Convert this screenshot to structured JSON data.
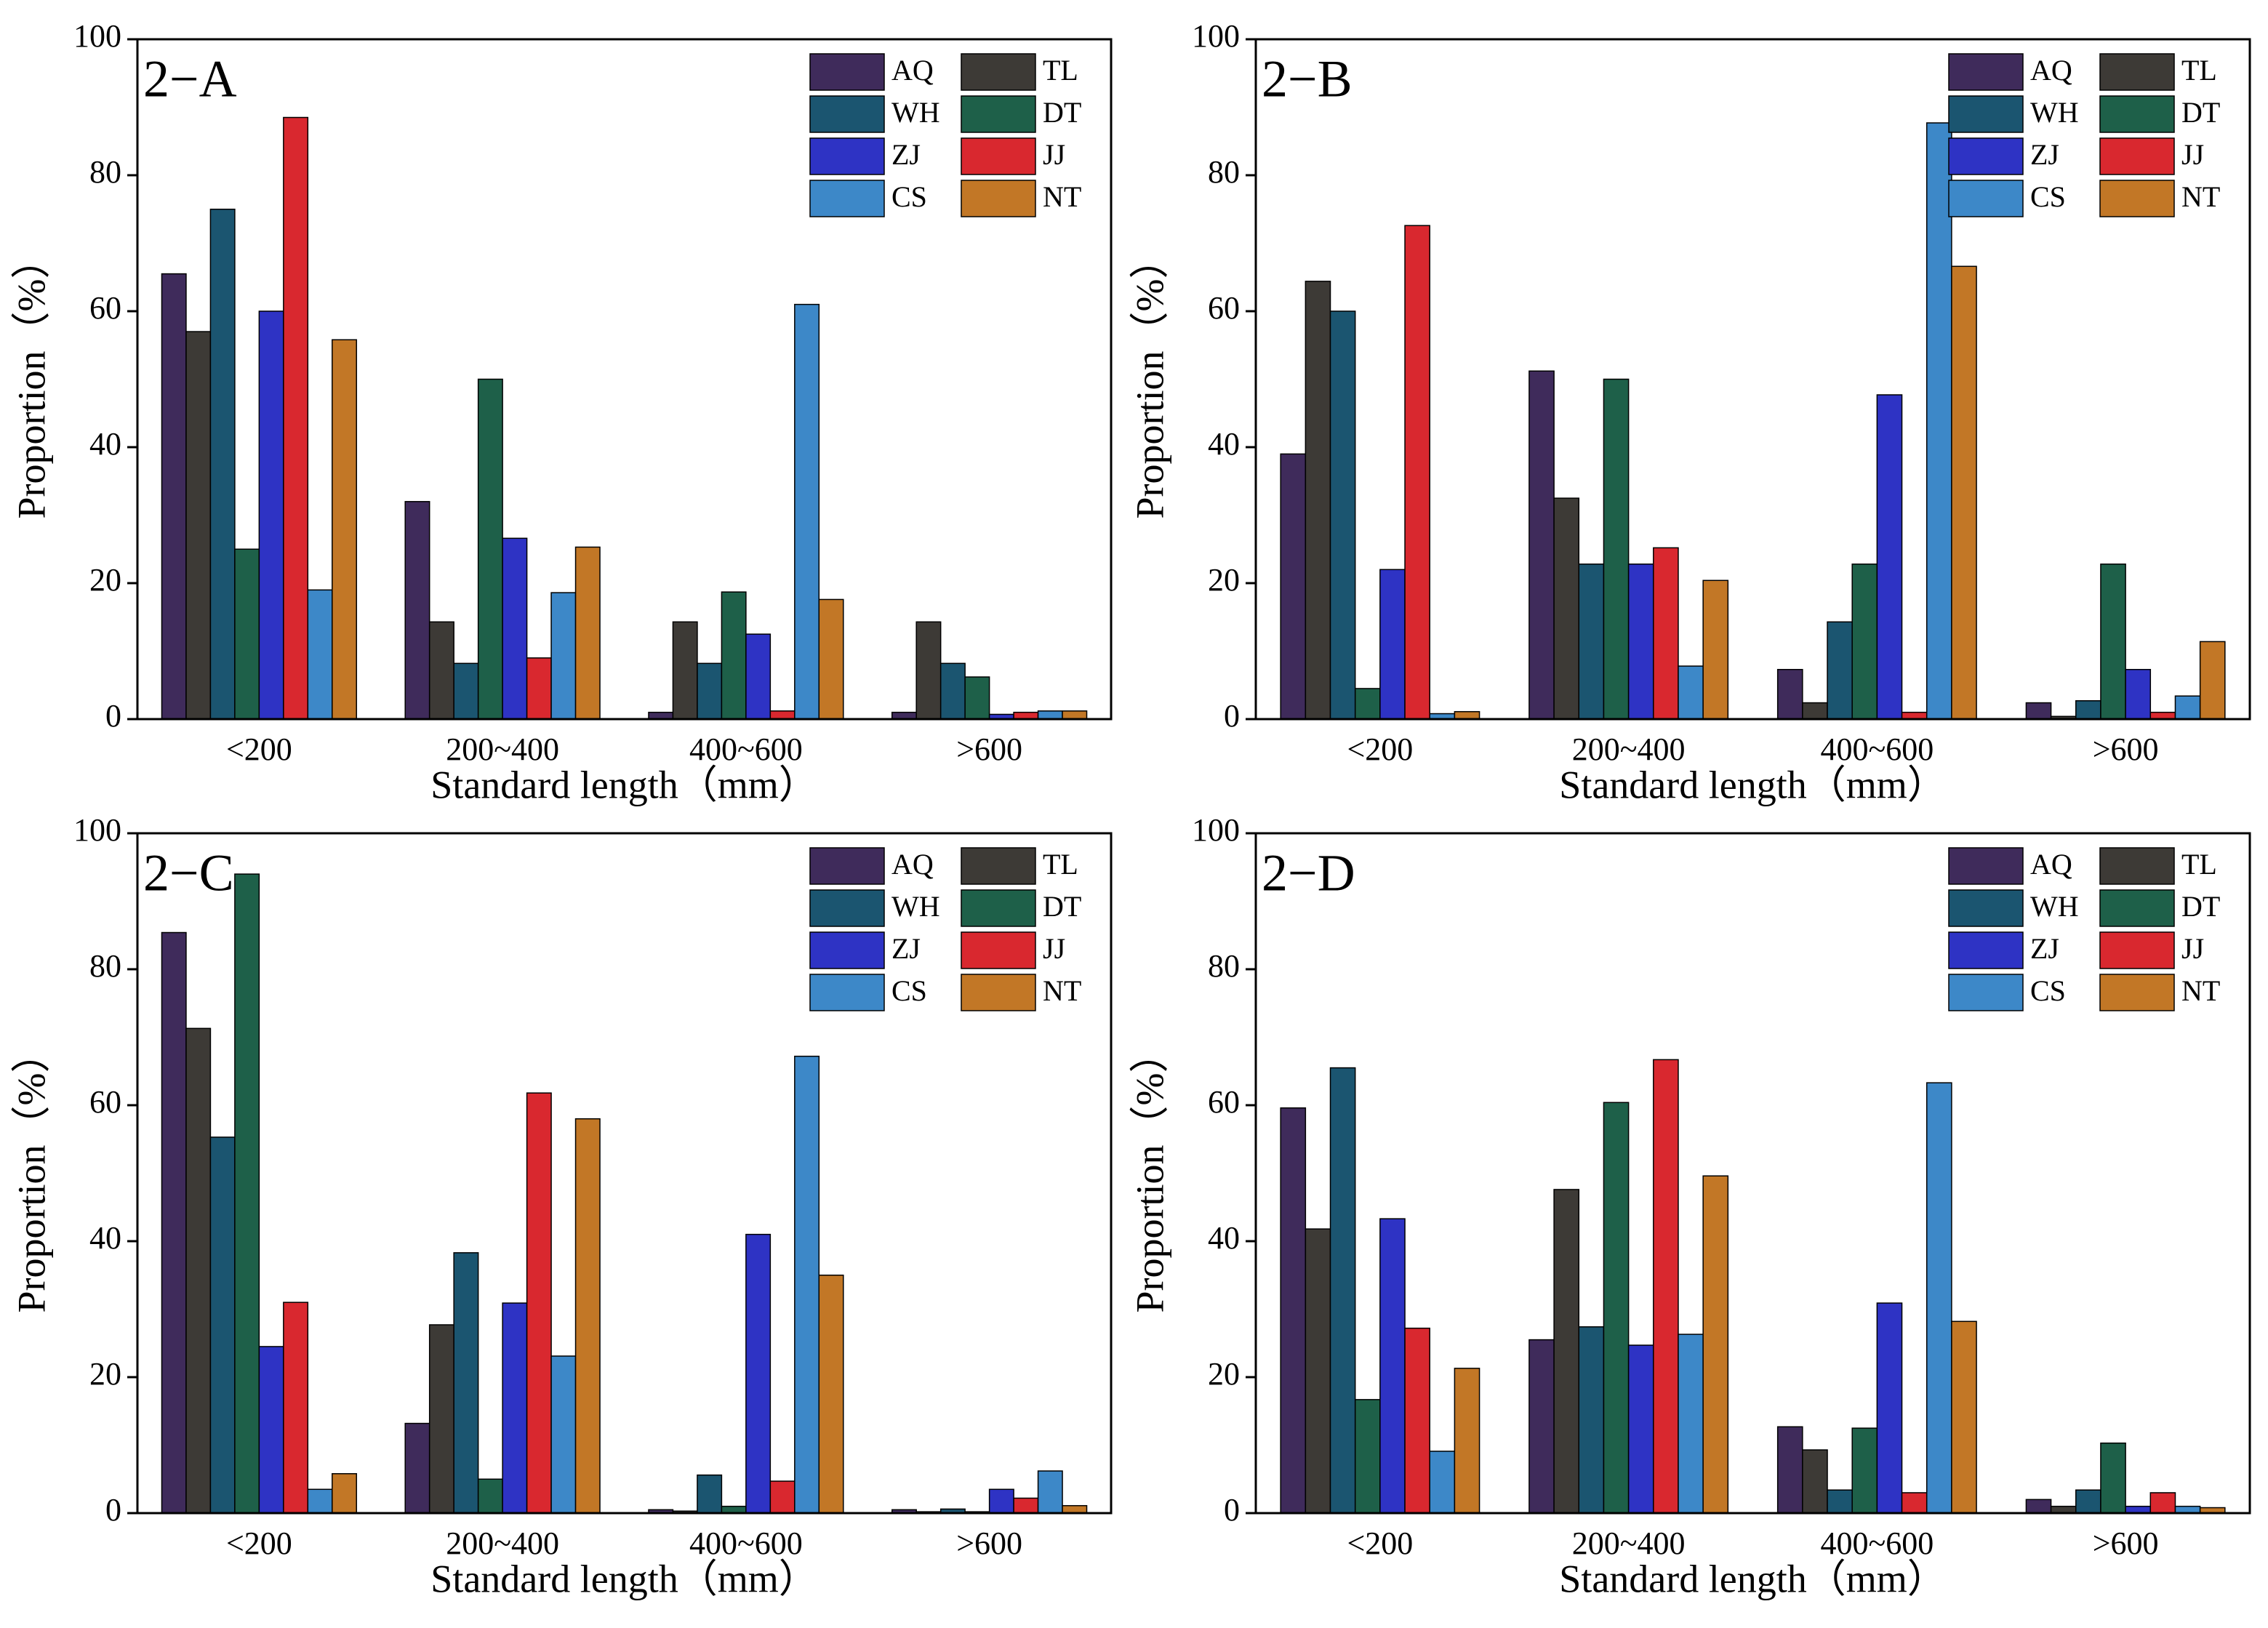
{
  "chart_data": [
    {
      "type": "bar",
      "title": "2−A",
      "xlabel": "Standard length（mm）",
      "ylabel": "Proportion（%）",
      "categories": [
        "<200",
        "200~400",
        "400~600",
        ">600"
      ],
      "ylim": [
        0,
        100
      ],
      "yticks": [
        0,
        20,
        40,
        60,
        80,
        100
      ],
      "legend": "upper right",
      "series": [
        {
          "name": "AQ",
          "color": "#3f2b5b",
          "values": [
            65.5,
            32,
            1,
            1
          ]
        },
        {
          "name": "TL",
          "color": "#3d3a36",
          "values": [
            57,
            14.3,
            14.3,
            14.3
          ]
        },
        {
          "name": "WH",
          "color": "#1b5570",
          "values": [
            75,
            8.2,
            8.2,
            8.2
          ]
        },
        {
          "name": "DT",
          "color": "#1e6049",
          "values": [
            25,
            50,
            18.7,
            6.2
          ]
        },
        {
          "name": "ZJ",
          "color": "#2e33c4",
          "values": [
            60,
            26.6,
            12.5,
            0.7
          ]
        },
        {
          "name": "JJ",
          "color": "#d9282f",
          "values": [
            88.5,
            9,
            1.2,
            1
          ]
        },
        {
          "name": "CS",
          "color": "#3d88c8",
          "values": [
            19,
            18.6,
            61,
            1.2
          ]
        },
        {
          "name": "NT",
          "color": "#c27726",
          "values": [
            55.8,
            25.3,
            17.6,
            1.2
          ]
        }
      ]
    },
    {
      "type": "bar",
      "title": "2−B",
      "xlabel": "Standard length（mm）",
      "ylabel": "Proportion（%）",
      "categories": [
        "<200",
        "200~400",
        "400~600",
        ">600"
      ],
      "ylim": [
        0,
        100
      ],
      "yticks": [
        0,
        20,
        40,
        60,
        80,
        100
      ],
      "legend": "upper right",
      "series": [
        {
          "name": "AQ",
          "color": "#3f2b5b",
          "values": [
            39,
            51.2,
            7.3,
            2.4
          ]
        },
        {
          "name": "TL",
          "color": "#3d3a36",
          "values": [
            64.4,
            32.5,
            2.4,
            0.4
          ]
        },
        {
          "name": "WH",
          "color": "#1b5570",
          "values": [
            60,
            22.8,
            14.3,
            2.7
          ]
        },
        {
          "name": "DT",
          "color": "#1e6049",
          "values": [
            4.5,
            50,
            22.8,
            22.8
          ]
        },
        {
          "name": "ZJ",
          "color": "#2e33c4",
          "values": [
            22,
            22.8,
            47.7,
            7.3
          ]
        },
        {
          "name": "JJ",
          "color": "#d9282f",
          "values": [
            72.6,
            25.2,
            1,
            1
          ]
        },
        {
          "name": "CS",
          "color": "#3d88c8",
          "values": [
            0.8,
            7.8,
            87.7,
            3.4
          ]
        },
        {
          "name": "NT",
          "color": "#c27726",
          "values": [
            1.1,
            20.4,
            66.6,
            11.4
          ]
        }
      ]
    },
    {
      "type": "bar",
      "title": "2−C",
      "xlabel": "Standard length（mm）",
      "ylabel": "Proportion（%）",
      "categories": [
        "<200",
        "200~400",
        "400~600",
        ">600"
      ],
      "ylim": [
        0,
        100
      ],
      "yticks": [
        0,
        20,
        40,
        60,
        80,
        100
      ],
      "legend": "upper right",
      "series": [
        {
          "name": "AQ",
          "color": "#3f2b5b",
          "values": [
            85.4,
            13.2,
            0.5,
            0.5
          ]
        },
        {
          "name": "TL",
          "color": "#3d3a36",
          "values": [
            71.3,
            27.7,
            0.3,
            0.2
          ]
        },
        {
          "name": "WH",
          "color": "#1b5570",
          "values": [
            55.3,
            38.3,
            5.6,
            0.6
          ]
        },
        {
          "name": "DT",
          "color": "#1e6049",
          "values": [
            94,
            5,
            1,
            0.2
          ]
        },
        {
          "name": "ZJ",
          "color": "#2e33c4",
          "values": [
            24.5,
            30.9,
            41,
            3.5
          ]
        },
        {
          "name": "JJ",
          "color": "#d9282f",
          "values": [
            31,
            61.8,
            4.7,
            2.2
          ]
        },
        {
          "name": "CS",
          "color": "#3d88c8",
          "values": [
            3.5,
            23.1,
            67.2,
            6.2
          ]
        },
        {
          "name": "NT",
          "color": "#c27726",
          "values": [
            5.8,
            58,
            35,
            1.1
          ]
        }
      ]
    },
    {
      "type": "bar",
      "title": "2−D",
      "xlabel": "Standard length（mm）",
      "ylabel": "Proportion（%）",
      "categories": [
        "<200",
        "200~400",
        "400~600",
        ">600"
      ],
      "ylim": [
        0,
        100
      ],
      "yticks": [
        0,
        20,
        40,
        60,
        80,
        100
      ],
      "legend": "upper right",
      "series": [
        {
          "name": "AQ",
          "color": "#3f2b5b",
          "values": [
            59.6,
            25.5,
            12.7,
            2
          ]
        },
        {
          "name": "TL",
          "color": "#3d3a36",
          "values": [
            41.8,
            47.6,
            9.3,
            1
          ]
        },
        {
          "name": "WH",
          "color": "#1b5570",
          "values": [
            65.5,
            27.4,
            3.4,
            3.4
          ]
        },
        {
          "name": "DT",
          "color": "#1e6049",
          "values": [
            16.7,
            60.4,
            12.5,
            10.3
          ]
        },
        {
          "name": "ZJ",
          "color": "#2e33c4",
          "values": [
            43.3,
            24.7,
            30.9,
            1
          ]
        },
        {
          "name": "JJ",
          "color": "#d9282f",
          "values": [
            27.2,
            66.7,
            3,
            3
          ]
        },
        {
          "name": "CS",
          "color": "#3d88c8",
          "values": [
            9.1,
            26.3,
            63.3,
            1
          ]
        },
        {
          "name": "NT",
          "color": "#c27726",
          "values": [
            21.3,
            49.6,
            28.2,
            0.8
          ]
        }
      ]
    }
  ]
}
